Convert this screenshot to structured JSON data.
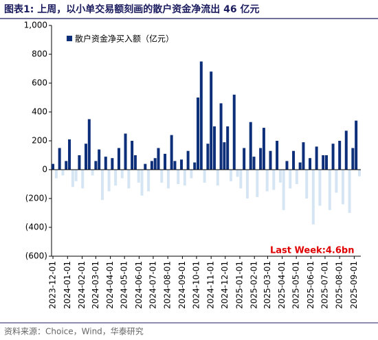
{
  "chart_data": {
    "type": "bar",
    "title": "图表1:  上周，以小单交易额刻画的散户资金净流出 46 亿元",
    "legend": "散户资金净买入额（亿元）",
    "annotation": "Last Week:4.6bn",
    "source": "资料来源：Choice，Wind，华泰研究",
    "color": "#0d2f7a",
    "negative_color": "#d5e5f4",
    "x": [
      "2023-12-01",
      "2023-12-08",
      "2023-12-15",
      "2023-12-22",
      "2023-12-29",
      "2024-01-05",
      "2024-01-12",
      "2024-01-19",
      "2024-01-26",
      "2024-02-02",
      "2024-02-09",
      "2024-02-16",
      "2024-02-23",
      "2024-03-01",
      "2024-03-08",
      "2024-03-15",
      "2024-03-22",
      "2024-03-29",
      "2024-04-05",
      "2024-04-12",
      "2024-04-19",
      "2024-04-26",
      "2024-05-03",
      "2024-05-10",
      "2024-05-17",
      "2024-05-24",
      "2024-05-31",
      "2024-06-07",
      "2024-06-14",
      "2024-06-21",
      "2024-06-28",
      "2024-07-05",
      "2024-07-12",
      "2024-07-19",
      "2024-07-26",
      "2024-08-02",
      "2024-08-09",
      "2024-08-16",
      "2024-08-23",
      "2024-08-30",
      "2024-09-06",
      "2024-09-13",
      "2024-09-20",
      "2024-09-27",
      "2024-10-04",
      "2024-10-11",
      "2024-10-18",
      "2024-10-25",
      "2024-11-01",
      "2024-11-08",
      "2024-11-15",
      "2024-11-22",
      "2024-11-29",
      "2024-12-06",
      "2024-12-13",
      "2024-12-20",
      "2024-12-27",
      "2025-01-03",
      "2025-01-10",
      "2025-01-17",
      "2025-01-24",
      "2025-01-31",
      "2025-02-07",
      "2025-02-14",
      "2025-02-21",
      "2025-02-28",
      "2025-03-07",
      "2025-03-14",
      "2025-03-21",
      "2025-03-28",
      "2025-04-04",
      "2025-04-11",
      "2025-04-18",
      "2025-04-25",
      "2025-05-02",
      "2025-05-09",
      "2025-05-16",
      "2025-05-23",
      "2025-05-30",
      "2025-06-06",
      "2025-06-13",
      "2025-06-20",
      "2025-06-27",
      "2025-07-04",
      "2025-07-11",
      "2025-07-18",
      "2025-07-25",
      "2025-08-01",
      "2025-08-08",
      "2025-08-15",
      "2025-08-22",
      "2025-08-29",
      "2025-09-05",
      "2025-09-12"
    ],
    "values": [
      40,
      -60,
      150,
      -40,
      60,
      210,
      -120,
      -80,
      100,
      -130,
      180,
      350,
      -40,
      60,
      140,
      -210,
      90,
      -150,
      80,
      -110,
      150,
      -60,
      250,
      -130,
      200,
      100,
      -90,
      -180,
      40,
      -150,
      60,
      80,
      150,
      -90,
      110,
      -130,
      240,
      60,
      -100,
      70,
      -110,
      130,
      -60,
      50,
      500,
      750,
      -90,
      180,
      680,
      300,
      -110,
      460,
      190,
      300,
      -80,
      520,
      -50,
      -130,
      150,
      -200,
      330,
      90,
      -190,
      150,
      290,
      -150,
      130,
      -140,
      200,
      -90,
      -280,
      60,
      -130,
      130,
      -100,
      50,
      190,
      -200,
      80,
      -380,
      160,
      -250,
      100,
      100,
      -280,
      180,
      -160,
      200,
      -240,
      270,
      -300,
      150,
      340,
      -46
    ],
    "xlim": [
      "2023-11-28",
      "2025-09-15"
    ],
    "xticks": [
      "2023-12-01",
      "2024-01-01",
      "2024-02-01",
      "2024-03-01",
      "2024-04-01",
      "2024-05-01",
      "2024-06-01",
      "2024-07-01",
      "2024-08-01",
      "2024-09-01",
      "2024-10-01",
      "2024-11-01",
      "2024-12-01",
      "2025-01-01",
      "2025-02-01",
      "2025-03-01",
      "2025-04-01",
      "2025-05-01",
      "2025-06-01",
      "2025-07-01",
      "2025-08-01",
      "2025-09-01"
    ],
    "ylim": [
      -600,
      1000
    ],
    "yticks": [
      {
        "value": 1000,
        "label": "1,000"
      },
      800,
      600,
      400,
      200,
      0,
      {
        "value": -200,
        "label": "(200)"
      },
      {
        "value": -400,
        "label": "(400)"
      },
      {
        "value": -600,
        "label": "(600)"
      }
    ]
  }
}
